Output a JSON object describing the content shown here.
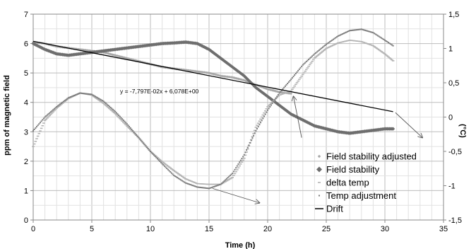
{
  "chart_data": {
    "type": "line",
    "xlabel": "Time (h)",
    "ylabel": "ppm of magnetic field",
    "y2label": "(°C)",
    "xlim": [
      0,
      35
    ],
    "ylim": [
      0,
      7
    ],
    "y2lim": [
      -1.5,
      1.5
    ],
    "x_ticks": [
      "0",
      "5",
      "10",
      "15",
      "20",
      "25",
      "30",
      "35"
    ],
    "y_ticks": [
      "0",
      "1",
      "2",
      "3",
      "4",
      "5",
      "6",
      "7"
    ],
    "y2_ticks": [
      "-1,5",
      "-1",
      "-0,5",
      "0",
      "0,5",
      "1",
      "1,5"
    ],
    "grid": true,
    "legend_position": "bottom-right",
    "annotation": "y = -7,797E-02x + 6,078E+00",
    "series": [
      {
        "name": "Field stability adjusted",
        "axis": "left",
        "color": "#a8a8a8",
        "marker": "diamond-small",
        "x": [
          0,
          1,
          2,
          3,
          4,
          5,
          6,
          7,
          8,
          9,
          10,
          11,
          12,
          13,
          14,
          15,
          16,
          17,
          18,
          19,
          20,
          21,
          22
        ],
        "y": [
          6.05,
          6.0,
          5.9,
          5.85,
          5.8,
          5.75,
          5.7,
          5.6,
          5.5,
          5.4,
          5.3,
          5.2,
          5.15,
          5.1,
          5.05,
          5.0,
          4.9,
          4.85,
          4.75,
          4.6,
          4.45,
          4.35,
          4.3
        ]
      },
      {
        "name": "Field stability",
        "axis": "left",
        "color": "#6e6e6e",
        "marker": "diamond",
        "x": [
          0,
          1,
          2,
          3,
          4,
          5,
          6,
          7,
          8,
          9,
          10,
          11,
          12,
          13,
          14,
          15,
          16,
          17,
          18,
          19,
          20,
          21,
          22,
          23,
          24,
          25,
          26,
          27,
          28,
          29,
          30,
          30.7
        ],
        "y": [
          6.0,
          5.8,
          5.65,
          5.6,
          5.65,
          5.7,
          5.75,
          5.8,
          5.85,
          5.9,
          5.95,
          6.0,
          6.02,
          6.05,
          6.0,
          5.8,
          5.5,
          5.2,
          4.9,
          4.5,
          4.2,
          3.9,
          3.6,
          3.4,
          3.2,
          3.1,
          3.0,
          2.95,
          3.0,
          3.05,
          3.1,
          3.1
        ]
      },
      {
        "name": "delta temp",
        "axis": "right",
        "color": "#b4b4b4",
        "marker": "dash",
        "x": [
          0,
          1,
          2,
          3,
          4,
          5,
          6,
          7,
          8,
          9,
          10,
          11,
          12,
          13,
          14,
          15,
          16,
          17,
          18,
          19,
          20,
          21,
          22,
          23,
          24,
          25,
          26,
          27,
          28,
          29,
          30,
          30.7
        ],
        "y": [
          -0.43,
          -0.05,
          0.13,
          0.27,
          0.35,
          0.32,
          0.2,
          0.05,
          -0.13,
          -0.3,
          -0.5,
          -0.65,
          -0.78,
          -0.9,
          -0.97,
          -0.98,
          -0.98,
          -0.88,
          -0.6,
          -0.15,
          0.15,
          0.32,
          0.38,
          0.62,
          0.86,
          1.0,
          1.08,
          1.12,
          1.1,
          1.04,
          0.92,
          0.82
        ]
      },
      {
        "name": "Temp adjustment",
        "axis": "right",
        "color": "#7c7c7c",
        "marker": "small",
        "x": [
          0,
          1,
          2,
          3,
          4,
          5,
          6,
          7,
          8,
          9,
          10,
          11,
          12,
          13,
          14,
          15,
          16,
          17,
          18,
          19,
          20,
          21,
          22,
          23,
          24,
          25,
          26,
          27,
          28,
          29,
          30,
          30.7
        ],
        "y": [
          -0.2,
          0.0,
          0.15,
          0.28,
          0.35,
          0.33,
          0.23,
          0.08,
          -0.1,
          -0.3,
          -0.5,
          -0.68,
          -0.85,
          -0.96,
          -1.02,
          -1.04,
          -0.98,
          -0.82,
          -0.55,
          -0.2,
          0.1,
          0.35,
          0.55,
          0.76,
          0.92,
          1.06,
          1.18,
          1.26,
          1.28,
          1.23,
          1.12,
          1.04
        ]
      },
      {
        "name": "Drift",
        "axis": "left",
        "color": "#000000",
        "marker": "line",
        "x": [
          0,
          30.7
        ],
        "y": [
          6.078,
          3.684
        ]
      }
    ]
  }
}
